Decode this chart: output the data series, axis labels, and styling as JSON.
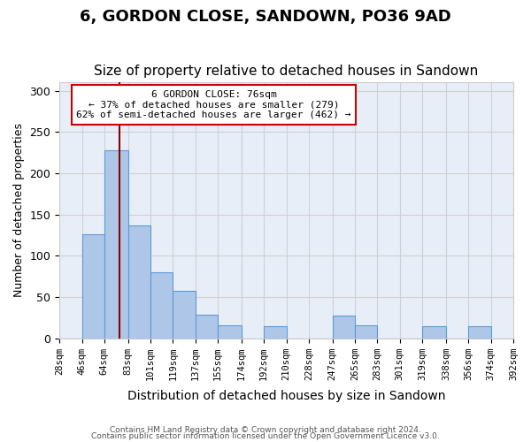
{
  "title": "6, GORDON CLOSE, SANDOWN, PO36 9AD",
  "subtitle": "Size of property relative to detached houses in Sandown",
  "xlabel": "Distribution of detached houses by size in Sandown",
  "ylabel": "Number of detached properties",
  "annotation_title": "6 GORDON CLOSE: 76sqm",
  "annotation_line1": "← 37% of detached houses are smaller (279)",
  "annotation_line2": "62% of semi-detached houses are larger (462) →",
  "footnote1": "Contains HM Land Registry data © Crown copyright and database right 2024.",
  "footnote2": "Contains public sector information licensed under the Open Government Licence v3.0.",
  "bar_edges": [
    28,
    46,
    64,
    83,
    101,
    119,
    137,
    155,
    174,
    192,
    210,
    228,
    247,
    265,
    283,
    301,
    319,
    338,
    356,
    374,
    392
  ],
  "bar_heights": [
    0,
    126,
    228,
    137,
    80,
    57,
    29,
    16,
    0,
    15,
    0,
    0,
    28,
    16,
    0,
    0,
    15,
    0,
    15,
    0
  ],
  "bar_color": "#aec6e8",
  "bar_edgecolor": "#5b9bd5",
  "property_line_x": 76,
  "property_line_color": "#8b0000",
  "ylim": [
    0,
    310
  ],
  "yticks": [
    0,
    50,
    100,
    150,
    200,
    250,
    300
  ],
  "xtick_labels": [
    "28sqm",
    "46sqm",
    "64sqm",
    "83sqm",
    "101sqm",
    "119sqm",
    "137sqm",
    "155sqm",
    "174sqm",
    "192sqm",
    "210sqm",
    "228sqm",
    "247sqm",
    "265sqm",
    "283sqm",
    "301sqm",
    "319sqm",
    "338sqm",
    "356sqm",
    "374sqm",
    "392sqm"
  ],
  "grid_color": "#d0d0d0",
  "background_color": "#e8eef8",
  "title_fontsize": 13,
  "subtitle_fontsize": 11,
  "annotation_box_color": "#ffffff",
  "annotation_box_edgecolor": "#cc0000"
}
